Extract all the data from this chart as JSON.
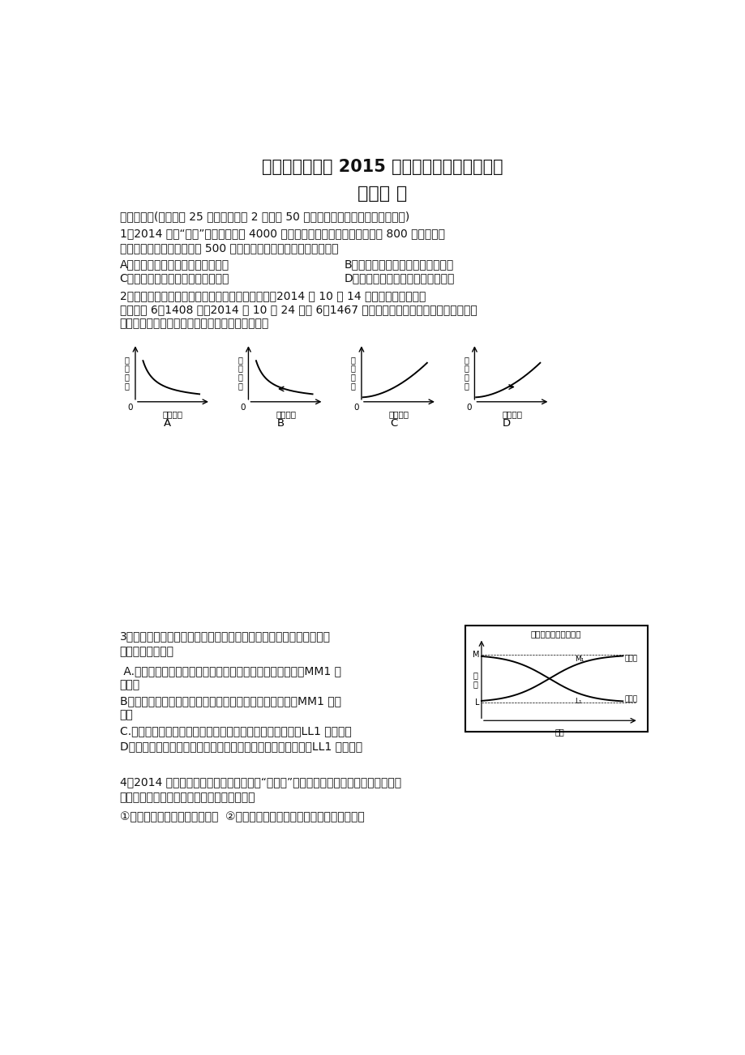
{
  "title1": "山东省实验中学 2015 届高三第二次诊断性考试",
  "title2": "政治试 题",
  "section1": "一、选择题(本题包括 25 小题，每小题 2 分，共 50 分。每小题只有一个选项符合题意)",
  "q1_line1": "1．2014 年为“十一”期间，刚领到 4000 元工资的小王在商场看中一件标价 800 元的服装，",
  "q1_line2": "在和卖家讨价还价后最终以 500 元成交。这里涉及的货币职能依次是",
  "q1_A": "A．价值尺度、支付手段、流通手段",
  "q1_B": "B．支付手段、流通手段、价值手段",
  "q1_C": "C．价值尺度、流通手段、支付手段",
  "q1_D": "D．支付手段、价值尺度、流通手段",
  "q2_line1": "2．外币的汇率变动会带来商品进出口数量的变动。2014 年 10 月 14 日人民币对美元汇率",
  "q2_line2": "中间价为 6．1408 元，2014 年 10 月 24 日为 6．1467 元。不考虑其他因素，这一变动给我国",
  "q2_line3": "带来的影响与下列四幅图中所示状况对应正确的是",
  "q3_line1": "3．右图为某商场同一时期甲、乙两种商品的销量变化图，请你判断下",
  "q3_line2": "列情况最可能的是",
  "q3_A": " A.甲、乙是互补商品，如果甲商品社会必要劳动时间减少，MM1 会",
  "q3_A2": "向下移",
  "q3_B": "B．甲、乙是互补商品，如果甲商品社会劳动生产率提高，MM1 会向",
  "q3_B2": "上移",
  "q3_C": "C.甲、乙是互为替代品，如果乙商品社会劳动生产率提高，LL1 会向下移",
  "q3_D": "D．甲、乙是互为替代品，如果乙商品社会必要劳动时间减少，LL1 会向上移",
  "q4_line1": "4．2014 年是农历马年，随着众多版本的“马上体”走红网络，与马有关的吉祥物开始热",
  "q4_line2": "销，这给玩具产业的发展带来了契机。这说明",
  "q4_12": "①消费心理影响人们的消费行为  ②从众心理引发的消费可以推动新产品的出现",
  "bg_color": "#ffffff",
  "text_color": "#000000",
  "right_chart_title": "甲、乙商品销量变化图",
  "right_chart_ylabel": "销\n量",
  "right_chart_xlabel": "月份",
  "right_chart_jia": "甲商品",
  "right_chart_yi": "乙商品"
}
